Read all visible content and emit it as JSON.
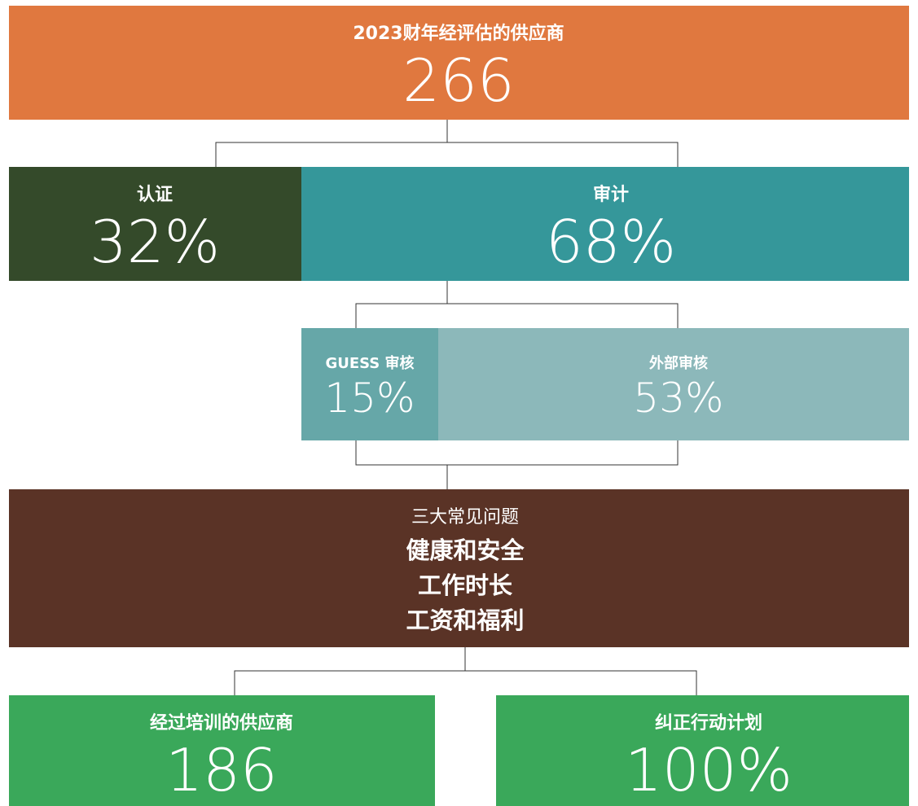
{
  "top": {
    "label": "2023财年经评估的供应商",
    "value": "266"
  },
  "split": [
    {
      "label": "认证",
      "value": "32%"
    },
    {
      "label": "审计",
      "value": "68%"
    }
  ],
  "audit": [
    {
      "label": "GUESS 审核",
      "value": "15%"
    },
    {
      "label": "外部审核",
      "value": "53%"
    }
  ],
  "issues": {
    "title": "三大常见问题",
    "items": [
      "健康和安全",
      "工作时长",
      "工资和福利"
    ]
  },
  "results": [
    {
      "label": "经过培训的供应商",
      "value": "186"
    },
    {
      "label": "纠正行动计划",
      "value": "100%"
    }
  ]
}
